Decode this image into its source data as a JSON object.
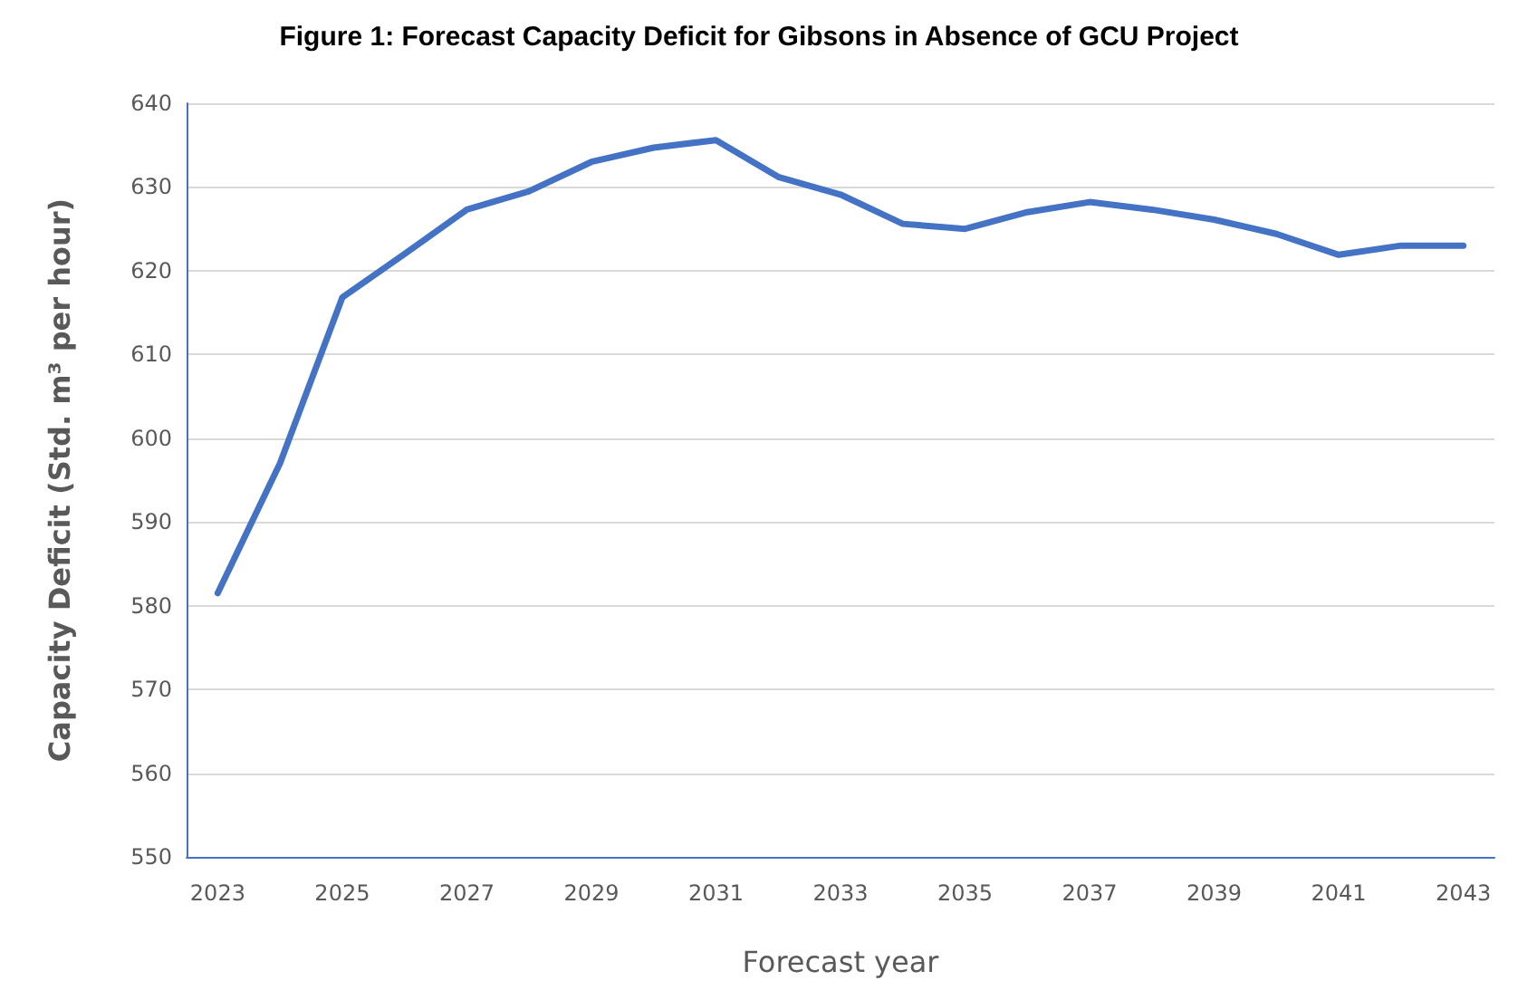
{
  "chart_data": {
    "type": "line",
    "title": "Figure 1: Forecast Capacity Deficit for Gibsons in Absence of GCU Project",
    "xlabel": "Forecast year",
    "ylabel": "Capacity Deficit (Std. m³ per hour)",
    "categories": [
      "2023",
      null,
      "2025",
      null,
      "2027",
      null,
      "2029",
      null,
      "2031",
      null,
      "2033",
      null,
      "2035",
      null,
      "2037",
      null,
      "2039",
      null,
      "2041",
      null,
      "2043"
    ],
    "series": [
      {
        "color": "#4472c4",
        "values": [
          581.5,
          597,
          616.8,
          622,
          627.3,
          629.5,
          633,
          634.7,
          635.6,
          631.2,
          629.1,
          625.6,
          625,
          627,
          628.2,
          627.3,
          626.1,
          624.4,
          621.9,
          623,
          623
        ]
      }
    ],
    "ylim": [
      550,
      640
    ],
    "yticks": [
      550,
      560,
      570,
      580,
      590,
      600,
      610,
      620,
      630,
      640
    ],
    "grid": "y",
    "marker": "none",
    "line_style": "solid"
  }
}
